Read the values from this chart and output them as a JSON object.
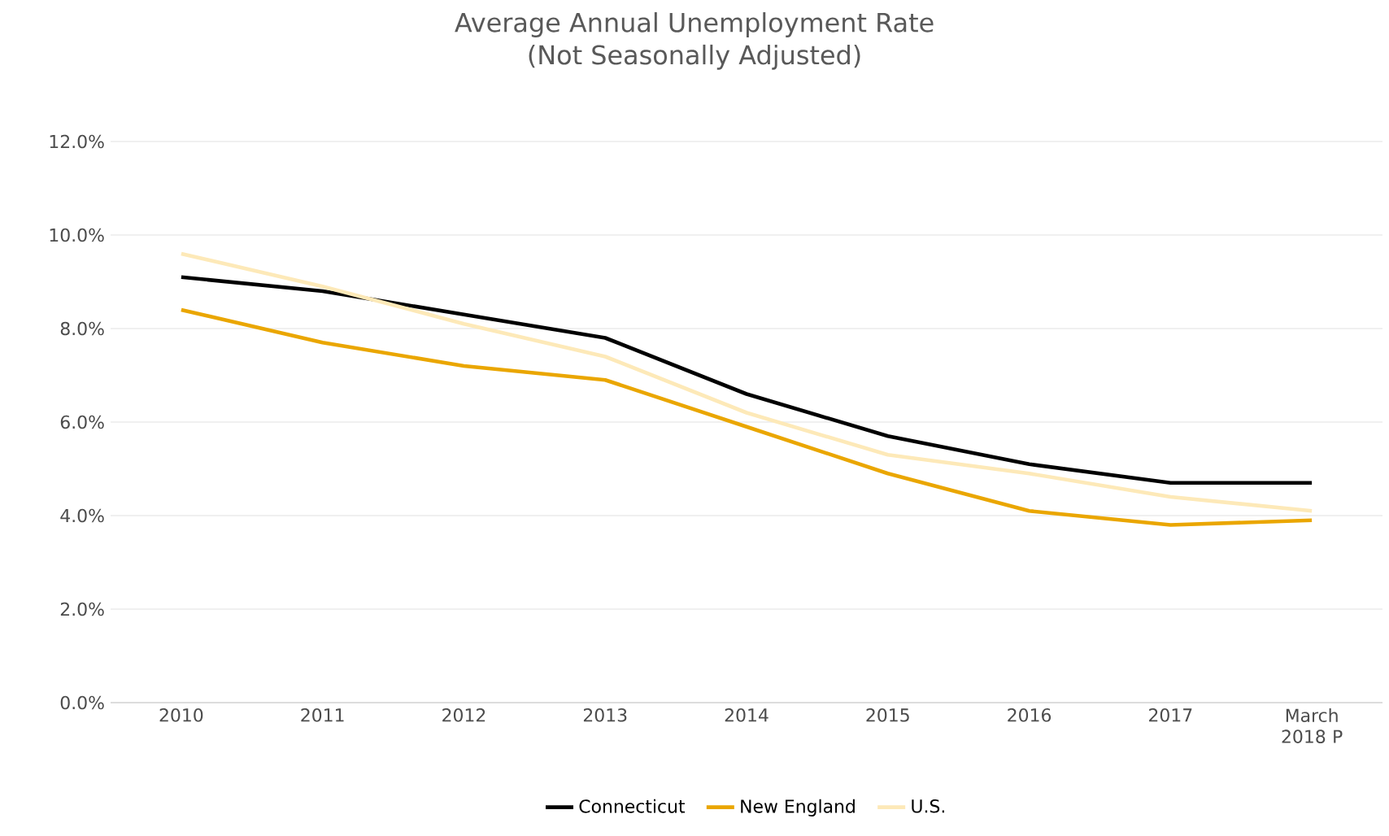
{
  "chart_data": {
    "type": "line",
    "title": "Average Annual Unemployment Rate",
    "subtitle": "(Not Seasonally Adjusted)",
    "categories": [
      "2010",
      "2011",
      "2012",
      "2013",
      "2014",
      "2015",
      "2016",
      "2017",
      "March 2018 P"
    ],
    "series": [
      {
        "name": "Connecticut",
        "color": "#000000",
        "values": [
          9.1,
          8.8,
          8.3,
          7.8,
          6.6,
          5.7,
          5.1,
          4.7,
          4.7
        ]
      },
      {
        "name": "New England",
        "color": "#eaa600",
        "values": [
          8.4,
          7.7,
          7.2,
          6.9,
          5.9,
          4.9,
          4.1,
          3.8,
          3.9
        ]
      },
      {
        "name": "U.S.",
        "color": "#fde9b8",
        "values": [
          9.6,
          8.9,
          8.1,
          7.4,
          6.2,
          5.3,
          4.9,
          4.4,
          4.1
        ]
      }
    ],
    "ylim": [
      0,
      12
    ],
    "yticks": [
      {
        "value": 0,
        "label": "0.0%"
      },
      {
        "value": 2,
        "label": "2.0%"
      },
      {
        "value": 4,
        "label": "4.0%"
      },
      {
        "value": 6,
        "label": "6.0%"
      },
      {
        "value": 8,
        "label": "8.0%"
      },
      {
        "value": 10,
        "label": "10.0%"
      },
      {
        "value": 12,
        "label": "12.0%"
      }
    ],
    "grid": "y",
    "legend": "bottom",
    "marker": "none",
    "line_style": "solid"
  }
}
